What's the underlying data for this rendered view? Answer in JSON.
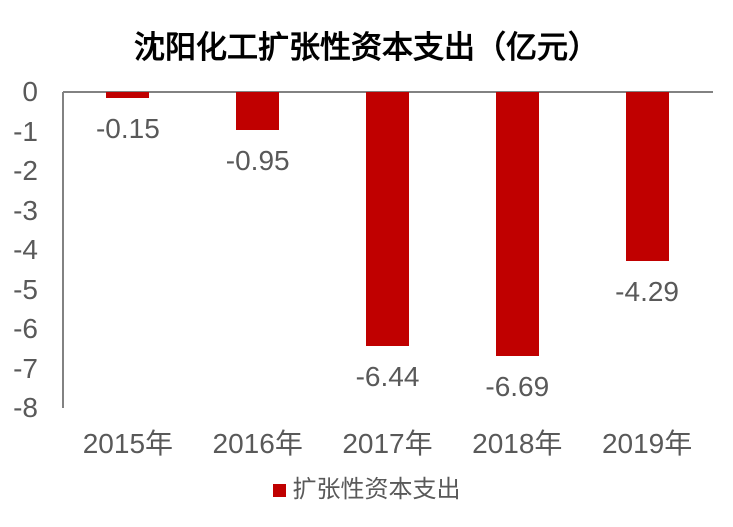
{
  "chart_data": {
    "type": "bar",
    "title": "沈阳化工扩张性资本支出（亿元）",
    "categories": [
      "2015年",
      "2016年",
      "2017年",
      "2018年",
      "2019年"
    ],
    "series": [
      {
        "name": "扩张性资本支出",
        "values": [
          -0.15,
          -0.95,
          -6.44,
          -6.69,
          -4.29
        ]
      }
    ],
    "data_labels": [
      "-0.15",
      "-0.95",
      "-6.44",
      "-6.69",
      "-4.29"
    ],
    "xlabel": "",
    "ylabel": "",
    "ylim": [
      -8,
      0
    ],
    "yticks": [
      0,
      -1,
      -2,
      -3,
      -4,
      -5,
      -6,
      -7,
      -8
    ],
    "grid": false,
    "legend": {
      "label": "扩张性资本支出",
      "position": "bottom"
    },
    "colors": {
      "bar": "#C00000",
      "title": "#000000",
      "tick_label": "#595959",
      "data_label": "#595959",
      "axis_line": "#828282",
      "background": "#FFFFFF"
    }
  }
}
